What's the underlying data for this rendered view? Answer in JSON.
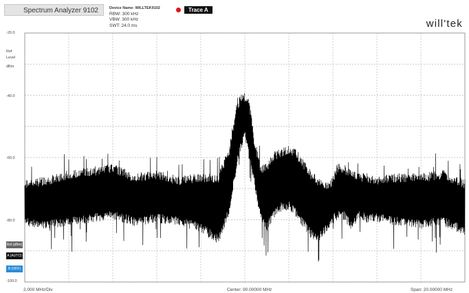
{
  "window": {
    "title": "Spectrum Analyzer 9102"
  },
  "info": {
    "device": "Device Name: WILLTEK9102",
    "rbw": "RBW:  300 kHz",
    "vbw": "VBW:  300 kHz",
    "swt": "SWT:  24.0 ms"
  },
  "trace": {
    "label": "Trace A",
    "color": "#e0151b"
  },
  "logo": "will'tek",
  "axis": {
    "y_ticks": [
      "-20.0",
      "-40.0",
      "-60.0",
      "-80.0",
      "-100.0"
    ],
    "ref_label_1": "Ref",
    "ref_label_2": "Level",
    "unit": "dBm"
  },
  "side_buttons": [
    {
      "label": "Ref.(dBm)",
      "color": "#666666"
    },
    {
      "label": "A (AUTO)",
      "color": "#111111"
    },
    {
      "label": "B (OFF)",
      "color": "#2a8cd6"
    }
  ],
  "footer": {
    "left": "2.000 MHz/Div",
    "center": "Center: 90.00000 MHz",
    "right": "Span: 20.00000 MHz"
  },
  "chart_data": {
    "type": "line",
    "title": "",
    "xlabel": "",
    "ylabel": "dBm",
    "xlim": [
      80.0,
      100.0
    ],
    "ylim": [
      -100,
      -20
    ],
    "grid": true,
    "series": [
      {
        "x": [
          80.0,
          81.0,
          82.0,
          83.0,
          84.0,
          85.0,
          86.0,
          87.0,
          88.0,
          88.8,
          89.3,
          89.6,
          89.8,
          90.0,
          90.2,
          90.4,
          90.7,
          91.0,
          91.3,
          91.7,
          92.0,
          92.3,
          92.6,
          93.0,
          93.3,
          93.6,
          93.9,
          94.2,
          94.5,
          94.8,
          95.0,
          95.2,
          95.5,
          96.0,
          97.0,
          98.0,
          99.0,
          100.0
        ],
        "y_top": [
          -67,
          -66,
          -64,
          -63,
          -62,
          -65,
          -64,
          -66,
          -65,
          -65,
          -56,
          -43,
          -40,
          -39,
          -41,
          -52,
          -62,
          -62,
          -58,
          -57,
          -56,
          -57,
          -60,
          -64,
          -66,
          -68,
          -67,
          -62,
          -62,
          -64,
          -64,
          -65,
          -65,
          -66,
          -65,
          -65,
          -64,
          -67
        ],
        "y_bottom": [
          -82,
          -83,
          -82,
          -81,
          -80,
          -82,
          -81,
          -82,
          -84,
          -88,
          -78,
          -65,
          -58,
          -54,
          -60,
          -68,
          -80,
          -84,
          -80,
          -77,
          -77,
          -79,
          -82,
          -86,
          -88,
          -85,
          -82,
          -80,
          -80,
          -83,
          -82,
          -80,
          -81,
          -81,
          -82,
          -83,
          -82,
          -85
        ]
      }
    ]
  }
}
